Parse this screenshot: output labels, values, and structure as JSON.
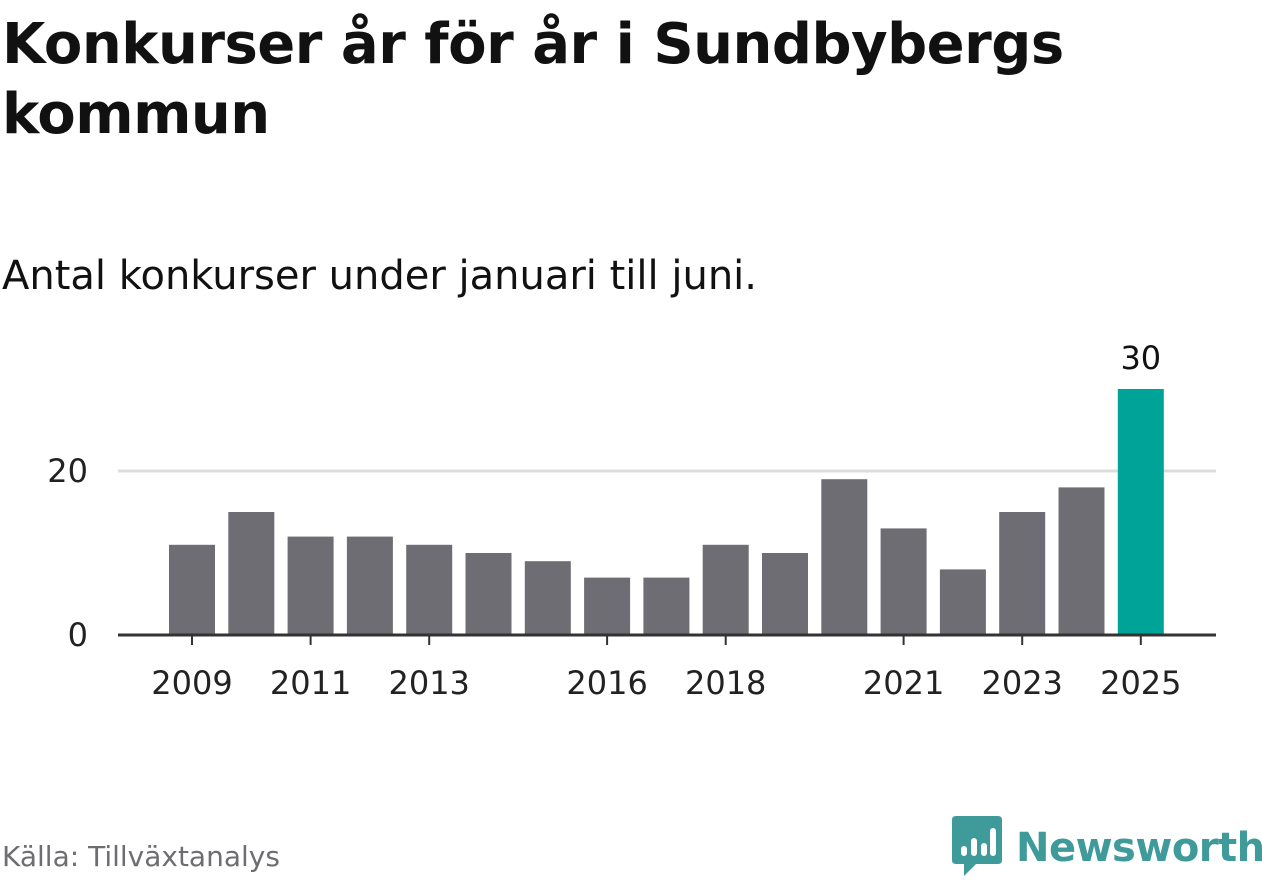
{
  "title": "Konkurser år för år i Sundbybergs kommun",
  "subtitle": "Antal konkurser under januari till juni.",
  "source": "Källa: Tillväxtanalys",
  "brand": {
    "name": "Newsworthy",
    "icon": "newsworthy-bar-chart-icon"
  },
  "colors": {
    "bar": "#6e6d73",
    "highlight": "#00a398",
    "grid": "#dcdcdc",
    "axis": "#333333",
    "brand": "#3f9a9a"
  },
  "chart_data": {
    "type": "bar",
    "categories": [
      "2009",
      "2010",
      "2011",
      "2012",
      "2013",
      "2014",
      "2015",
      "2016",
      "2017",
      "2018",
      "2019",
      "2020",
      "2021",
      "2022",
      "2023",
      "2024",
      "2025"
    ],
    "values": [
      11,
      15,
      12,
      12,
      11,
      10,
      9,
      7,
      7,
      11,
      10,
      19,
      13,
      8,
      15,
      18,
      30
    ],
    "x_tick_labels": [
      "2009",
      "2011",
      "2013",
      "2016",
      "2018",
      "2021",
      "2023",
      "2025"
    ],
    "y_ticks": [
      0,
      20
    ],
    "highlight_category": "2025",
    "data_labels": [
      {
        "category": "2025",
        "text": "30"
      }
    ],
    "xlabel": "",
    "ylabel": "",
    "ylim": [
      0,
      30
    ],
    "grid": true
  }
}
